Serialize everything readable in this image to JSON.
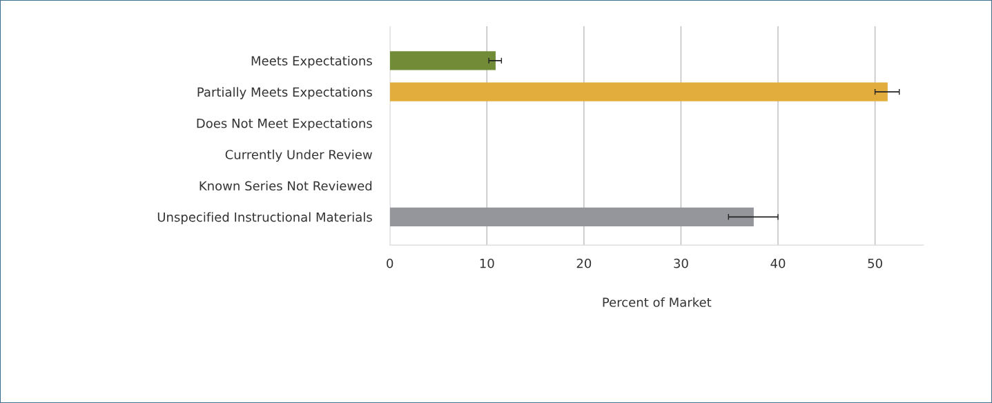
{
  "chart_data": {
    "type": "bar",
    "orientation": "horizontal",
    "xlabel": "Percent of Market",
    "categories": [
      "Meets Expectations",
      "Partially Meets Expectations",
      "Does Not Meet Expectations",
      "Currently Under Review",
      "Known Series Not Reviewed",
      "Unspecified Instructional Materials"
    ],
    "values": [
      10.9,
      51.3,
      0,
      0,
      0,
      37.5
    ],
    "colors": [
      "#718b37",
      "#e3ad3d",
      "#94969b",
      "#94969b",
      "#94969b",
      "#94969b"
    ],
    "errors": [
      [
        10.2,
        11.5
      ],
      [
        50.0,
        52.5
      ],
      null,
      null,
      null,
      [
        34.9,
        40.0
      ]
    ],
    "xlim": [
      0,
      55
    ],
    "xticks": [
      0,
      10,
      20,
      30,
      40,
      50
    ],
    "grid": "x",
    "legend": false
  }
}
